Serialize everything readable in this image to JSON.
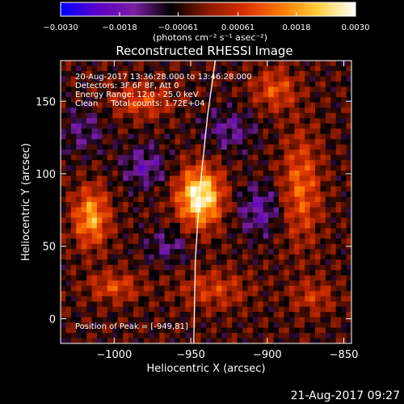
{
  "chart_data": {
    "type": "heatmap",
    "title": "Reconstructed RHESSI Image",
    "xlabel": "Heliocentric X (arcsec)",
    "ylabel": "Heliocentric Y (arcsec)",
    "xlim": [
      -1035,
      -845
    ],
    "ylim": [
      -17,
      178
    ],
    "xticks": [
      -1000,
      -950,
      -900,
      -850
    ],
    "yticks": [
      0,
      50,
      100,
      150
    ],
    "xtick_labels": [
      "−1000",
      "−950",
      "−900",
      "−850"
    ],
    "ytick_labels": [
      "0",
      "50",
      "100",
      "150"
    ],
    "colorbar": {
      "range": [
        -0.003,
        0.003
      ],
      "tick_values": [
        -0.003,
        -0.0018,
        -0.00061,
        0.00061,
        0.0018,
        0.003
      ],
      "tick_labels": [
        "−0.0030",
        "−0.0018",
        "−0.00061",
        "0.00061",
        "0.0018",
        "0.0030"
      ],
      "unit_label": "(photons cm⁻² s⁻¹ asec⁻²)",
      "colors": [
        "#0000ff",
        "#5b00c8",
        "#7a1ea0",
        "#000000",
        "#8a1a00",
        "#d83000",
        "#ff7a00",
        "#ffd040",
        "#ffffff"
      ]
    },
    "annotations": [
      "20-Aug-2017 13:36:28.000 to 13:46:28.000",
      "Detectors: 3F 6F 8F, Att 0",
      "Energy Range: 12.0 - 25.0 keV",
      "Clean     Total counts: 1.72E+04"
    ],
    "peak_label": "Position of Peak = [-949,81]",
    "peak": {
      "x": -949,
      "y": 81
    },
    "sources": [
      {
        "x": -944,
        "y": 84,
        "sx": 10,
        "sy": 14,
        "amp": 0.0034
      },
      {
        "x": -1015,
        "y": 70,
        "sx": 8,
        "sy": 14,
        "amp": 0.0023
      },
      {
        "x": -1000,
        "y": 22,
        "sx": 12,
        "sy": 7,
        "amp": 0.0013
      },
      {
        "x": -982,
        "y": 150,
        "sx": 14,
        "sy": 8,
        "amp": 0.0013
      },
      {
        "x": -895,
        "y": 158,
        "sx": 10,
        "sy": 10,
        "amp": 0.0014
      },
      {
        "x": -878,
        "y": 90,
        "sx": 9,
        "sy": 26,
        "amp": 0.0016
      },
      {
        "x": -935,
        "y": 20,
        "sx": 16,
        "sy": 9,
        "amp": 0.0011
      },
      {
        "x": -870,
        "y": 15,
        "sx": 10,
        "sy": 8,
        "amp": 0.001
      },
      {
        "x": -980,
        "y": 105,
        "sx": 10,
        "sy": 10,
        "amp": -0.0012
      },
      {
        "x": -925,
        "y": 130,
        "sx": 12,
        "sy": 10,
        "amp": -0.001
      },
      {
        "x": -905,
        "y": 75,
        "sx": 10,
        "sy": 12,
        "amp": -0.0012
      },
      {
        "x": -965,
        "y": 50,
        "sx": 10,
        "sy": 8,
        "amp": -0.0009
      },
      {
        "x": -1020,
        "y": 130,
        "sx": 10,
        "sy": 12,
        "amp": -0.0008
      }
    ],
    "limb_curve": [
      {
        "x": -948,
        "y": -17
      },
      {
        "x": -947,
        "y": 40
      },
      {
        "x": -944,
        "y": 90
      },
      {
        "x": -939,
        "y": 140
      },
      {
        "x": -934,
        "y": 178
      }
    ]
  },
  "footer_timestamp": "21-Aug-2017 09:27"
}
